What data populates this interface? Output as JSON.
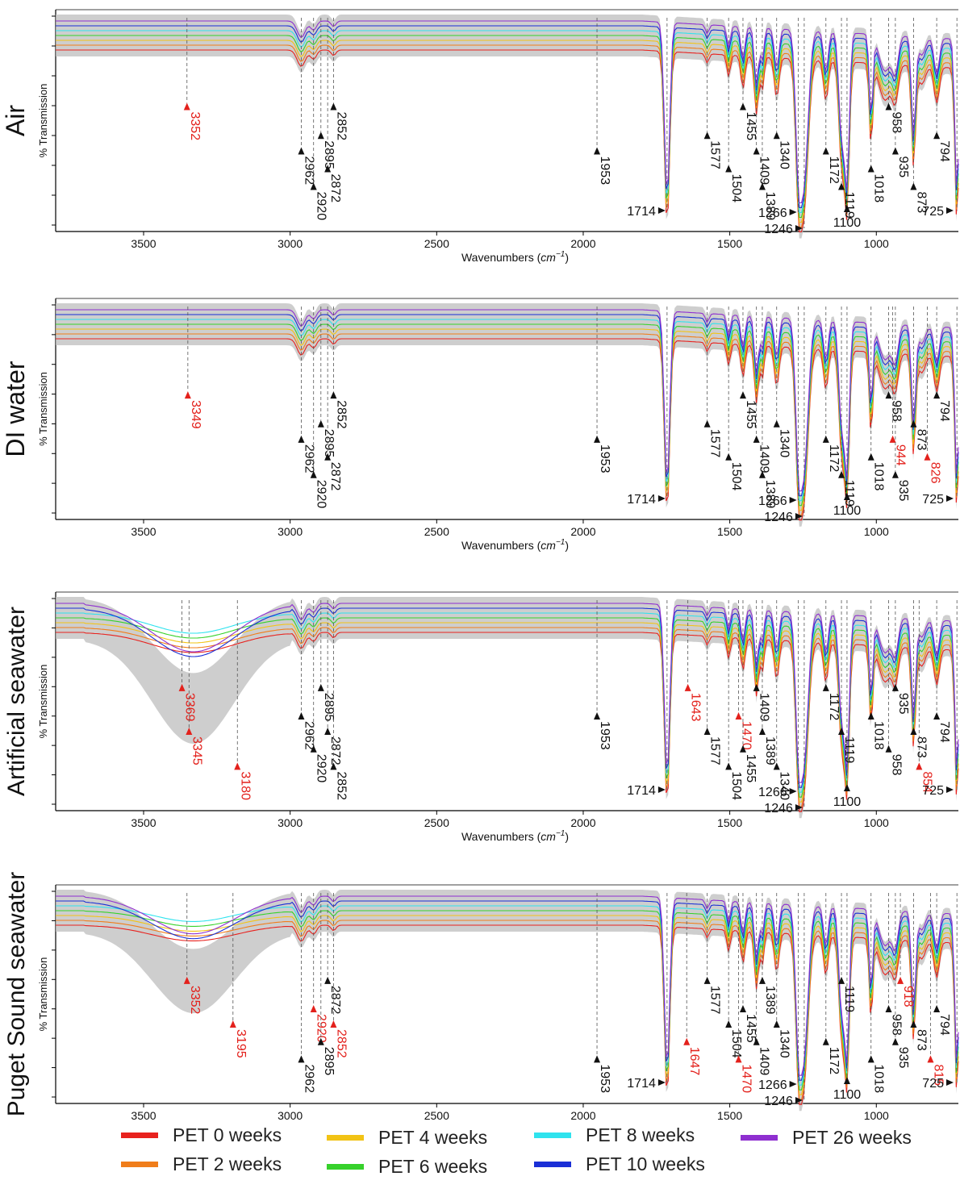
{
  "figure": {
    "y_axis_label": "% Transmission",
    "x_axis_label_main": "Wavenumbers (",
    "x_axis_label_unit": "cm",
    "x_axis_label_exp": "−1",
    "x_axis_label_close": ")",
    "x_ticks": [
      3500,
      3000,
      2500,
      2000,
      1500,
      1000
    ]
  },
  "chart_data": [
    {
      "type": "line",
      "title": "Air",
      "xlabel": "Wavenumbers (cm−1)",
      "ylabel": "% Transmission",
      "xlim": [
        3800,
        720
      ],
      "series_colors": [
        "#e8221e",
        "#f07d1a",
        "#f2c315",
        "#36d12b",
        "#2fe3ee",
        "#1a2fd6",
        "#8f2fd0"
      ],
      "series_names": [
        "PET 0 weeks",
        "PET 2 weeks",
        "PET 4 weeks",
        "PET 6 weeks",
        "PET 8 weeks",
        "PET 10 weeks",
        "PET 26 weeks"
      ],
      "peaks": [
        {
          "x": 3352,
          "label": "3352",
          "color": "red"
        },
        {
          "x": 2962,
          "label": "2962",
          "color": "black"
        },
        {
          "x": 2920,
          "label": "2920",
          "color": "black"
        },
        {
          "x": 2895,
          "label": "2895",
          "color": "black"
        },
        {
          "x": 2872,
          "label": "2872",
          "color": "black"
        },
        {
          "x": 2852,
          "label": "2852",
          "color": "black"
        },
        {
          "x": 1953,
          "label": "1953",
          "color": "black"
        },
        {
          "x": 1714,
          "label": "1714",
          "color": "black"
        },
        {
          "x": 1577,
          "label": "1577",
          "color": "black"
        },
        {
          "x": 1504,
          "label": "1504",
          "color": "black"
        },
        {
          "x": 1455,
          "label": "1455",
          "color": "black"
        },
        {
          "x": 1409,
          "label": "1409",
          "color": "black"
        },
        {
          "x": 1389,
          "label": "1389",
          "color": "black"
        },
        {
          "x": 1340,
          "label": "1340",
          "color": "black"
        },
        {
          "x": 1266,
          "label": "1266",
          "color": "black"
        },
        {
          "x": 1246,
          "label": "1246",
          "color": "black"
        },
        {
          "x": 1172,
          "label": "1172",
          "color": "black"
        },
        {
          "x": 1119,
          "label": "1119",
          "color": "black"
        },
        {
          "x": 1100,
          "label": "1100",
          "color": "black"
        },
        {
          "x": 1018,
          "label": "1018",
          "color": "black"
        },
        {
          "x": 958,
          "label": "958",
          "color": "black"
        },
        {
          "x": 935,
          "label": "935",
          "color": "black"
        },
        {
          "x": 873,
          "label": "873",
          "color": "black"
        },
        {
          "x": 794,
          "label": "794",
          "color": "black"
        },
        {
          "x": 725,
          "label": "725",
          "color": "black"
        }
      ]
    },
    {
      "type": "line",
      "title": "DI water",
      "xlabel": "Wavenumbers (cm−1)",
      "ylabel": "% Transmission",
      "xlim": [
        3800,
        720
      ],
      "series_colors": [
        "#e8221e",
        "#f07d1a",
        "#f2c315",
        "#36d12b",
        "#2fe3ee",
        "#1a2fd6",
        "#8f2fd0"
      ],
      "series_names": [
        "PET 0 weeks",
        "PET 2 weeks",
        "PET 4 weeks",
        "PET 6 weeks",
        "PET 8 weeks",
        "PET 10 weeks",
        "PET 26 weeks"
      ],
      "peaks": [
        {
          "x": 3349,
          "label": "3349",
          "color": "red"
        },
        {
          "x": 2962,
          "label": "2962",
          "color": "black"
        },
        {
          "x": 2920,
          "label": "2920",
          "color": "black"
        },
        {
          "x": 2895,
          "label": "2895",
          "color": "black"
        },
        {
          "x": 2872,
          "label": "2872",
          "color": "black"
        },
        {
          "x": 2852,
          "label": "2852",
          "color": "black"
        },
        {
          "x": 1953,
          "label": "1953",
          "color": "black"
        },
        {
          "x": 1714,
          "label": "1714",
          "color": "black"
        },
        {
          "x": 1577,
          "label": "1577",
          "color": "black"
        },
        {
          "x": 1504,
          "label": "1504",
          "color": "black"
        },
        {
          "x": 1455,
          "label": "1455",
          "color": "black"
        },
        {
          "x": 1409,
          "label": "1409",
          "color": "black"
        },
        {
          "x": 1389,
          "label": "1389",
          "color": "black"
        },
        {
          "x": 1340,
          "label": "1340",
          "color": "black"
        },
        {
          "x": 1266,
          "label": "1266",
          "color": "black"
        },
        {
          "x": 1246,
          "label": "1246",
          "color": "black"
        },
        {
          "x": 1172,
          "label": "1172",
          "color": "black"
        },
        {
          "x": 1119,
          "label": "1119",
          "color": "black"
        },
        {
          "x": 1100,
          "label": "1100",
          "color": "black"
        },
        {
          "x": 1018,
          "label": "1018",
          "color": "black"
        },
        {
          "x": 958,
          "label": "958",
          "color": "black"
        },
        {
          "x": 944,
          "label": "944",
          "color": "red"
        },
        {
          "x": 935,
          "label": "935",
          "color": "black"
        },
        {
          "x": 873,
          "label": "873",
          "color": "black"
        },
        {
          "x": 826,
          "label": "826",
          "color": "red"
        },
        {
          "x": 794,
          "label": "794",
          "color": "black"
        },
        {
          "x": 725,
          "label": "725",
          "color": "black"
        }
      ]
    },
    {
      "type": "line",
      "title": "Artificial seawater",
      "xlabel": "Wavenumbers (cm−1)",
      "ylabel": "% Transmission",
      "xlim": [
        3800,
        720
      ],
      "series_colors": [
        "#e8221e",
        "#f07d1a",
        "#f2c315",
        "#36d12b",
        "#2fe3ee",
        "#1a2fd6",
        "#8f2fd0"
      ],
      "series_names": [
        "PET 0 weeks",
        "PET 2 weeks",
        "PET 4 weeks",
        "PET 6 weeks",
        "PET 8 weeks",
        "PET 10 weeks",
        "PET 26 weeks"
      ],
      "peaks": [
        {
          "x": 3369,
          "label": "3369",
          "color": "red"
        },
        {
          "x": 3345,
          "label": "3345",
          "color": "red"
        },
        {
          "x": 3180,
          "label": "3180",
          "color": "red"
        },
        {
          "x": 2962,
          "label": "2962",
          "color": "black"
        },
        {
          "x": 2920,
          "label": "2920",
          "color": "black"
        },
        {
          "x": 2895,
          "label": "2895",
          "color": "black"
        },
        {
          "x": 2872,
          "label": "2872",
          "color": "black"
        },
        {
          "x": 2852,
          "label": "2852",
          "color": "black"
        },
        {
          "x": 1953,
          "label": "1953",
          "color": "black"
        },
        {
          "x": 1714,
          "label": "1714",
          "color": "black"
        },
        {
          "x": 1643,
          "label": "1643",
          "color": "red"
        },
        {
          "x": 1577,
          "label": "1577",
          "color": "black"
        },
        {
          "x": 1504,
          "label": "1504",
          "color": "black"
        },
        {
          "x": 1470,
          "label": "1470",
          "color": "red"
        },
        {
          "x": 1455,
          "label": "1455",
          "color": "black"
        },
        {
          "x": 1409,
          "label": "1409",
          "color": "black"
        },
        {
          "x": 1389,
          "label": "1389",
          "color": "black"
        },
        {
          "x": 1340,
          "label": "1340",
          "color": "black"
        },
        {
          "x": 1266,
          "label": "1266",
          "color": "black"
        },
        {
          "x": 1246,
          "label": "1246",
          "color": "black"
        },
        {
          "x": 1172,
          "label": "1172",
          "color": "black"
        },
        {
          "x": 1119,
          "label": "1119",
          "color": "black"
        },
        {
          "x": 1100,
          "label": "1100",
          "color": "black"
        },
        {
          "x": 1018,
          "label": "1018",
          "color": "black"
        },
        {
          "x": 958,
          "label": "958",
          "color": "black"
        },
        {
          "x": 935,
          "label": "935",
          "color": "black"
        },
        {
          "x": 873,
          "label": "873",
          "color": "black"
        },
        {
          "x": 854,
          "label": "854",
          "color": "red"
        },
        {
          "x": 794,
          "label": "794",
          "color": "black"
        },
        {
          "x": 725,
          "label": "725",
          "color": "black"
        }
      ]
    },
    {
      "type": "line",
      "title": "Puget Sound seawater",
      "xlabel": "Wavenumbers (cm−1)",
      "ylabel": "% Transmission",
      "xlim": [
        3800,
        720
      ],
      "series_colors": [
        "#e8221e",
        "#f07d1a",
        "#f2c315",
        "#36d12b",
        "#2fe3ee",
        "#1a2fd6",
        "#8f2fd0"
      ],
      "series_names": [
        "PET 0 weeks",
        "PET 2 weeks",
        "PET 4 weeks",
        "PET 6 weeks",
        "PET 8 weeks",
        "PET 10 weeks",
        "PET 26 weeks"
      ],
      "peaks": [
        {
          "x": 3352,
          "label": "3352",
          "color": "red"
        },
        {
          "x": 3195,
          "label": "3195",
          "color": "red"
        },
        {
          "x": 2962,
          "label": "2962",
          "color": "black"
        },
        {
          "x": 2920,
          "label": "2920",
          "color": "red"
        },
        {
          "x": 2895,
          "label": "2895",
          "color": "black"
        },
        {
          "x": 2872,
          "label": "2872",
          "color": "black"
        },
        {
          "x": 2852,
          "label": "2852",
          "color": "red"
        },
        {
          "x": 1953,
          "label": "1953",
          "color": "black"
        },
        {
          "x": 1714,
          "label": "1714",
          "color": "black"
        },
        {
          "x": 1647,
          "label": "1647",
          "color": "red"
        },
        {
          "x": 1577,
          "label": "1577",
          "color": "black"
        },
        {
          "x": 1504,
          "label": "1504",
          "color": "black"
        },
        {
          "x": 1470,
          "label": "1470",
          "color": "red"
        },
        {
          "x": 1455,
          "label": "1455",
          "color": "black"
        },
        {
          "x": 1409,
          "label": "1409",
          "color": "black"
        },
        {
          "x": 1389,
          "label": "1389",
          "color": "black"
        },
        {
          "x": 1340,
          "label": "1340",
          "color": "black"
        },
        {
          "x": 1266,
          "label": "1266",
          "color": "black"
        },
        {
          "x": 1246,
          "label": "1246",
          "color": "black"
        },
        {
          "x": 1172,
          "label": "1172",
          "color": "black"
        },
        {
          "x": 1119,
          "label": "1119",
          "color": "black"
        },
        {
          "x": 1100,
          "label": "1100",
          "color": "black"
        },
        {
          "x": 1018,
          "label": "1018",
          "color": "black"
        },
        {
          "x": 958,
          "label": "958",
          "color": "black"
        },
        {
          "x": 935,
          "label": "935",
          "color": "black"
        },
        {
          "x": 918,
          "label": "918",
          "color": "red"
        },
        {
          "x": 873,
          "label": "873",
          "color": "black"
        },
        {
          "x": 815,
          "label": "815",
          "color": "red"
        },
        {
          "x": 794,
          "label": "794",
          "color": "black"
        },
        {
          "x": 725,
          "label": "725",
          "color": "black"
        }
      ]
    }
  ],
  "legend": {
    "items": [
      {
        "label": "PET 0 weeks",
        "color": "#e8221e"
      },
      {
        "label": "PET 2 weeks",
        "color": "#f07d1a"
      },
      {
        "label": "PET 4 weeks",
        "color": "#f2c315"
      },
      {
        "label": "PET 6 weeks",
        "color": "#36d12b"
      },
      {
        "label": "PET 8 weeks",
        "color": "#2fe3ee"
      },
      {
        "label": "PET 10 weeks",
        "color": "#1a2fd6"
      },
      {
        "label": "PET 26 weeks",
        "color": "#8f2fd0"
      }
    ]
  }
}
